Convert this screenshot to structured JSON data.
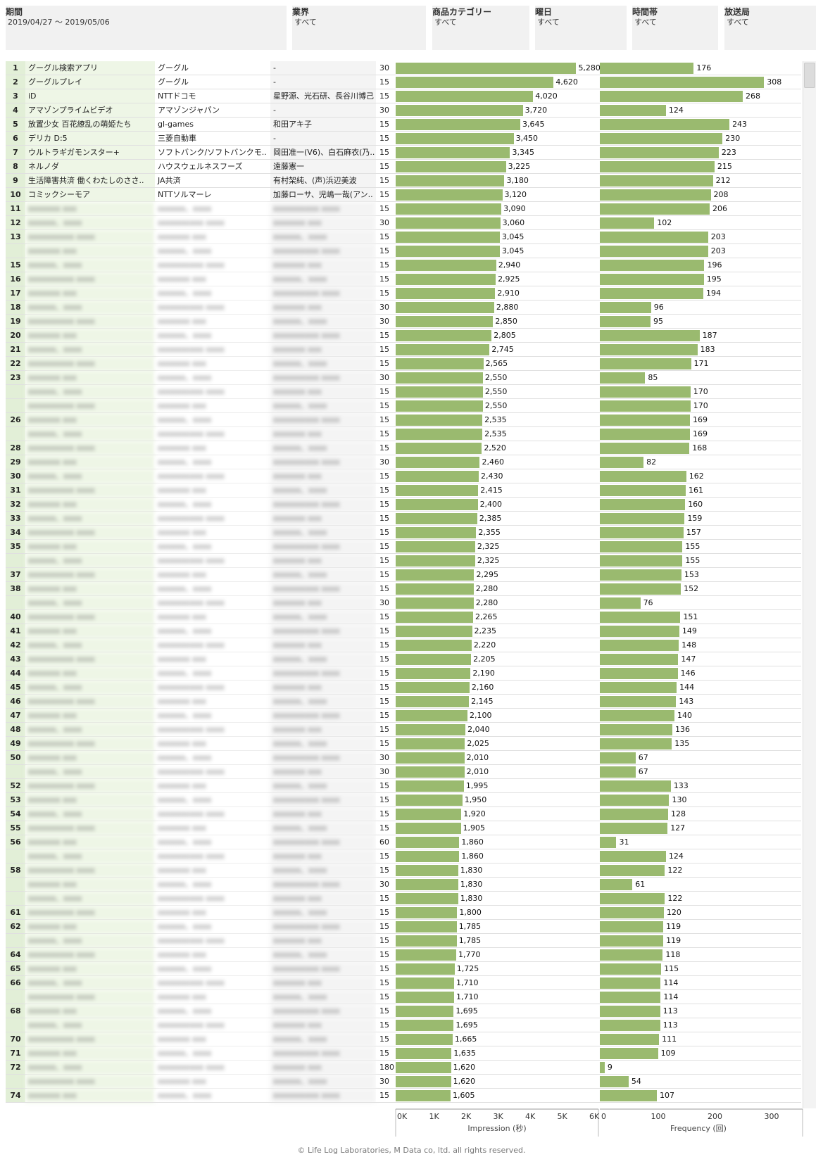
{
  "filters": [
    {
      "label": "期間",
      "value": "2019/04/27 〜 2019/05/06"
    },
    {
      "label": "業界",
      "value": "すべて"
    },
    {
      "label": "商品カテゴリー",
      "value": "すべて"
    },
    {
      "label": "曜日",
      "value": "すべて"
    },
    {
      "label": "時間帯",
      "value": "すべて"
    },
    {
      "label": "放送局",
      "value": "すべて"
    }
  ],
  "chart_data": {
    "type": "bar",
    "title": "",
    "visible_rows": [
      {
        "rank": "1",
        "name": "グーグル検索アプリ",
        "advertiser": "グーグル",
        "talent": "-",
        "seconds": "30",
        "impression": 5280,
        "frequency": 176
      },
      {
        "rank": "2",
        "name": "グーグルプレイ",
        "advertiser": "グーグル",
        "talent": "-",
        "seconds": "15",
        "impression": 4620,
        "frequency": 308
      },
      {
        "rank": "3",
        "name": "iD",
        "advertiser": "NTTドコモ",
        "talent": "星野源、光石研、長谷川博己",
        "seconds": "15",
        "impression": 4020,
        "frequency": 268
      },
      {
        "rank": "4",
        "name": "アマゾンプライムビデオ",
        "advertiser": "アマゾンジャパン",
        "talent": "-",
        "seconds": "30",
        "impression": 3720,
        "frequency": 124
      },
      {
        "rank": "5",
        "name": "放置少女 百花繚乱の萌姫たち",
        "advertiser": "gl-games",
        "talent": "和田アキ子",
        "seconds": "15",
        "impression": 3645,
        "frequency": 243
      },
      {
        "rank": "6",
        "name": "デリカ D:5",
        "advertiser": "三菱自動車",
        "talent": "-",
        "seconds": "15",
        "impression": 3450,
        "frequency": 230
      },
      {
        "rank": "7",
        "name": "ウルトラギガモンスター+",
        "advertiser": "ソフトバンク/ソフトバンクモ..",
        "talent": "岡田准一(V6)、白石麻衣(乃..",
        "seconds": "15",
        "impression": 3345,
        "frequency": 223
      },
      {
        "rank": "8",
        "name": "ネルノダ",
        "advertiser": "ハウスウェルネスフーズ",
        "talent": "遠藤憲一",
        "seconds": "15",
        "impression": 3225,
        "frequency": 215
      },
      {
        "rank": "9",
        "name": "生活障害共済 働くわたしのささ..",
        "advertiser": "JA共済",
        "talent": "有村架純、(声)浜辺美波",
        "seconds": "15",
        "impression": 3180,
        "frequency": 212
      },
      {
        "rank": "10",
        "name": "コミックシーモア",
        "advertiser": "NTTソルマーレ",
        "talent": "加藤ローサ、児嶋一哉(アン..",
        "seconds": "15",
        "impression": 3120,
        "frequency": 208
      },
      {
        "rank": "11",
        "seconds": "15",
        "impression": 3090,
        "frequency": 206
      },
      {
        "rank": "12",
        "seconds": "30",
        "impression": 3060,
        "frequency": 102
      },
      {
        "rank": "13",
        "seconds": "15",
        "impression": 3045,
        "frequency": 203
      },
      {
        "rank": "",
        "seconds": "15",
        "impression": 3045,
        "frequency": 203
      },
      {
        "rank": "15",
        "seconds": "15",
        "impression": 2940,
        "frequency": 196
      },
      {
        "rank": "16",
        "seconds": "15",
        "impression": 2925,
        "frequency": 195
      },
      {
        "rank": "17",
        "seconds": "15",
        "impression": 2910,
        "frequency": 194
      },
      {
        "rank": "18",
        "seconds": "30",
        "impression": 2880,
        "frequency": 96
      },
      {
        "rank": "19",
        "seconds": "30",
        "impression": 2850,
        "frequency": 95
      },
      {
        "rank": "20",
        "seconds": "15",
        "impression": 2805,
        "frequency": 187
      },
      {
        "rank": "21",
        "seconds": "15",
        "impression": 2745,
        "frequency": 183
      },
      {
        "rank": "22",
        "seconds": "15",
        "impression": 2565,
        "frequency": 171
      },
      {
        "rank": "23",
        "seconds": "30",
        "impression": 2550,
        "frequency": 85
      },
      {
        "rank": "",
        "seconds": "15",
        "impression": 2550,
        "frequency": 170
      },
      {
        "rank": "",
        "seconds": "15",
        "impression": 2550,
        "frequency": 170
      },
      {
        "rank": "26",
        "seconds": "15",
        "impression": 2535,
        "frequency": 169
      },
      {
        "rank": "",
        "seconds": "15",
        "impression": 2535,
        "frequency": 169
      },
      {
        "rank": "28",
        "seconds": "15",
        "impression": 2520,
        "frequency": 168
      },
      {
        "rank": "29",
        "seconds": "30",
        "impression": 2460,
        "frequency": 82
      },
      {
        "rank": "30",
        "seconds": "15",
        "impression": 2430,
        "frequency": 162
      },
      {
        "rank": "31",
        "seconds": "15",
        "impression": 2415,
        "frequency": 161
      },
      {
        "rank": "32",
        "seconds": "15",
        "impression": 2400,
        "frequency": 160
      },
      {
        "rank": "33",
        "seconds": "15",
        "impression": 2385,
        "frequency": 159
      },
      {
        "rank": "34",
        "seconds": "15",
        "impression": 2355,
        "frequency": 157
      },
      {
        "rank": "35",
        "seconds": "15",
        "impression": 2325,
        "frequency": 155
      },
      {
        "rank": "",
        "seconds": "15",
        "impression": 2325,
        "frequency": 155
      },
      {
        "rank": "37",
        "seconds": "15",
        "impression": 2295,
        "frequency": 153
      },
      {
        "rank": "38",
        "seconds": "15",
        "impression": 2280,
        "frequency": 152
      },
      {
        "rank": "",
        "seconds": "30",
        "impression": 2280,
        "frequency": 76
      },
      {
        "rank": "40",
        "seconds": "15",
        "impression": 2265,
        "frequency": 151
      },
      {
        "rank": "41",
        "seconds": "15",
        "impression": 2235,
        "frequency": 149
      },
      {
        "rank": "42",
        "seconds": "15",
        "impression": 2220,
        "frequency": 148
      },
      {
        "rank": "43",
        "seconds": "15",
        "impression": 2205,
        "frequency": 147
      },
      {
        "rank": "44",
        "seconds": "15",
        "impression": 2190,
        "frequency": 146
      },
      {
        "rank": "45",
        "seconds": "15",
        "impression": 2160,
        "frequency": 144
      },
      {
        "rank": "46",
        "seconds": "15",
        "impression": 2145,
        "frequency": 143
      },
      {
        "rank": "47",
        "seconds": "15",
        "impression": 2100,
        "frequency": 140
      },
      {
        "rank": "48",
        "seconds": "15",
        "impression": 2040,
        "frequency": 136
      },
      {
        "rank": "49",
        "seconds": "15",
        "impression": 2025,
        "frequency": 135
      },
      {
        "rank": "50",
        "seconds": "30",
        "impression": 2010,
        "frequency": 67
      },
      {
        "rank": "",
        "seconds": "30",
        "impression": 2010,
        "frequency": 67
      },
      {
        "rank": "52",
        "seconds": "15",
        "impression": 1995,
        "frequency": 133
      },
      {
        "rank": "53",
        "seconds": "15",
        "impression": 1950,
        "frequency": 130
      },
      {
        "rank": "54",
        "seconds": "15",
        "impression": 1920,
        "frequency": 128
      },
      {
        "rank": "55",
        "seconds": "15",
        "impression": 1905,
        "frequency": 127
      },
      {
        "rank": "56",
        "seconds": "60",
        "impression": 1860,
        "frequency": 31
      },
      {
        "rank": "",
        "seconds": "15",
        "impression": 1860,
        "frequency": 124
      },
      {
        "rank": "58",
        "seconds": "15",
        "impression": 1830,
        "frequency": 122
      },
      {
        "rank": "",
        "seconds": "30",
        "impression": 1830,
        "frequency": 61
      },
      {
        "rank": "",
        "seconds": "15",
        "impression": 1830,
        "frequency": 122
      },
      {
        "rank": "61",
        "seconds": "15",
        "impression": 1800,
        "frequency": 120
      },
      {
        "rank": "62",
        "seconds": "15",
        "impression": 1785,
        "frequency": 119
      },
      {
        "rank": "",
        "seconds": "15",
        "impression": 1785,
        "frequency": 119
      },
      {
        "rank": "64",
        "seconds": "15",
        "impression": 1770,
        "frequency": 118
      },
      {
        "rank": "65",
        "seconds": "15",
        "impression": 1725,
        "frequency": 115
      },
      {
        "rank": "66",
        "seconds": "15",
        "impression": 1710,
        "frequency": 114
      },
      {
        "rank": "",
        "seconds": "15",
        "impression": 1710,
        "frequency": 114
      },
      {
        "rank": "68",
        "seconds": "15",
        "impression": 1695,
        "frequency": 113
      },
      {
        "rank": "",
        "seconds": "15",
        "impression": 1695,
        "frequency": 113
      },
      {
        "rank": "70",
        "seconds": "15",
        "impression": 1665,
        "frequency": 111
      },
      {
        "rank": "71",
        "seconds": "15",
        "impression": 1635,
        "frequency": 109
      },
      {
        "rank": "72",
        "seconds": "180",
        "impression": 1620,
        "frequency": 9
      },
      {
        "rank": "",
        "seconds": "30",
        "impression": 1620,
        "frequency": 54
      },
      {
        "rank": "74",
        "seconds": "15",
        "impression": 1605,
        "frequency": 107
      }
    ],
    "axes": {
      "impression": {
        "title": "Impression (秒)",
        "ticks": [
          "0K",
          "1K",
          "2K",
          "3K",
          "4K",
          "5K",
          "6K"
        ],
        "min": 0,
        "max": 6000
      },
      "frequency": {
        "title": "Frequency (回)",
        "ticks": [
          "0",
          "100",
          "200",
          "300"
        ],
        "min": 0,
        "max": 300
      }
    },
    "bar_color": "#9aba6f",
    "grid": false,
    "legend": "none"
  },
  "footer": "© Life Log Laboratories, M Data co, ltd. all rights reserved."
}
